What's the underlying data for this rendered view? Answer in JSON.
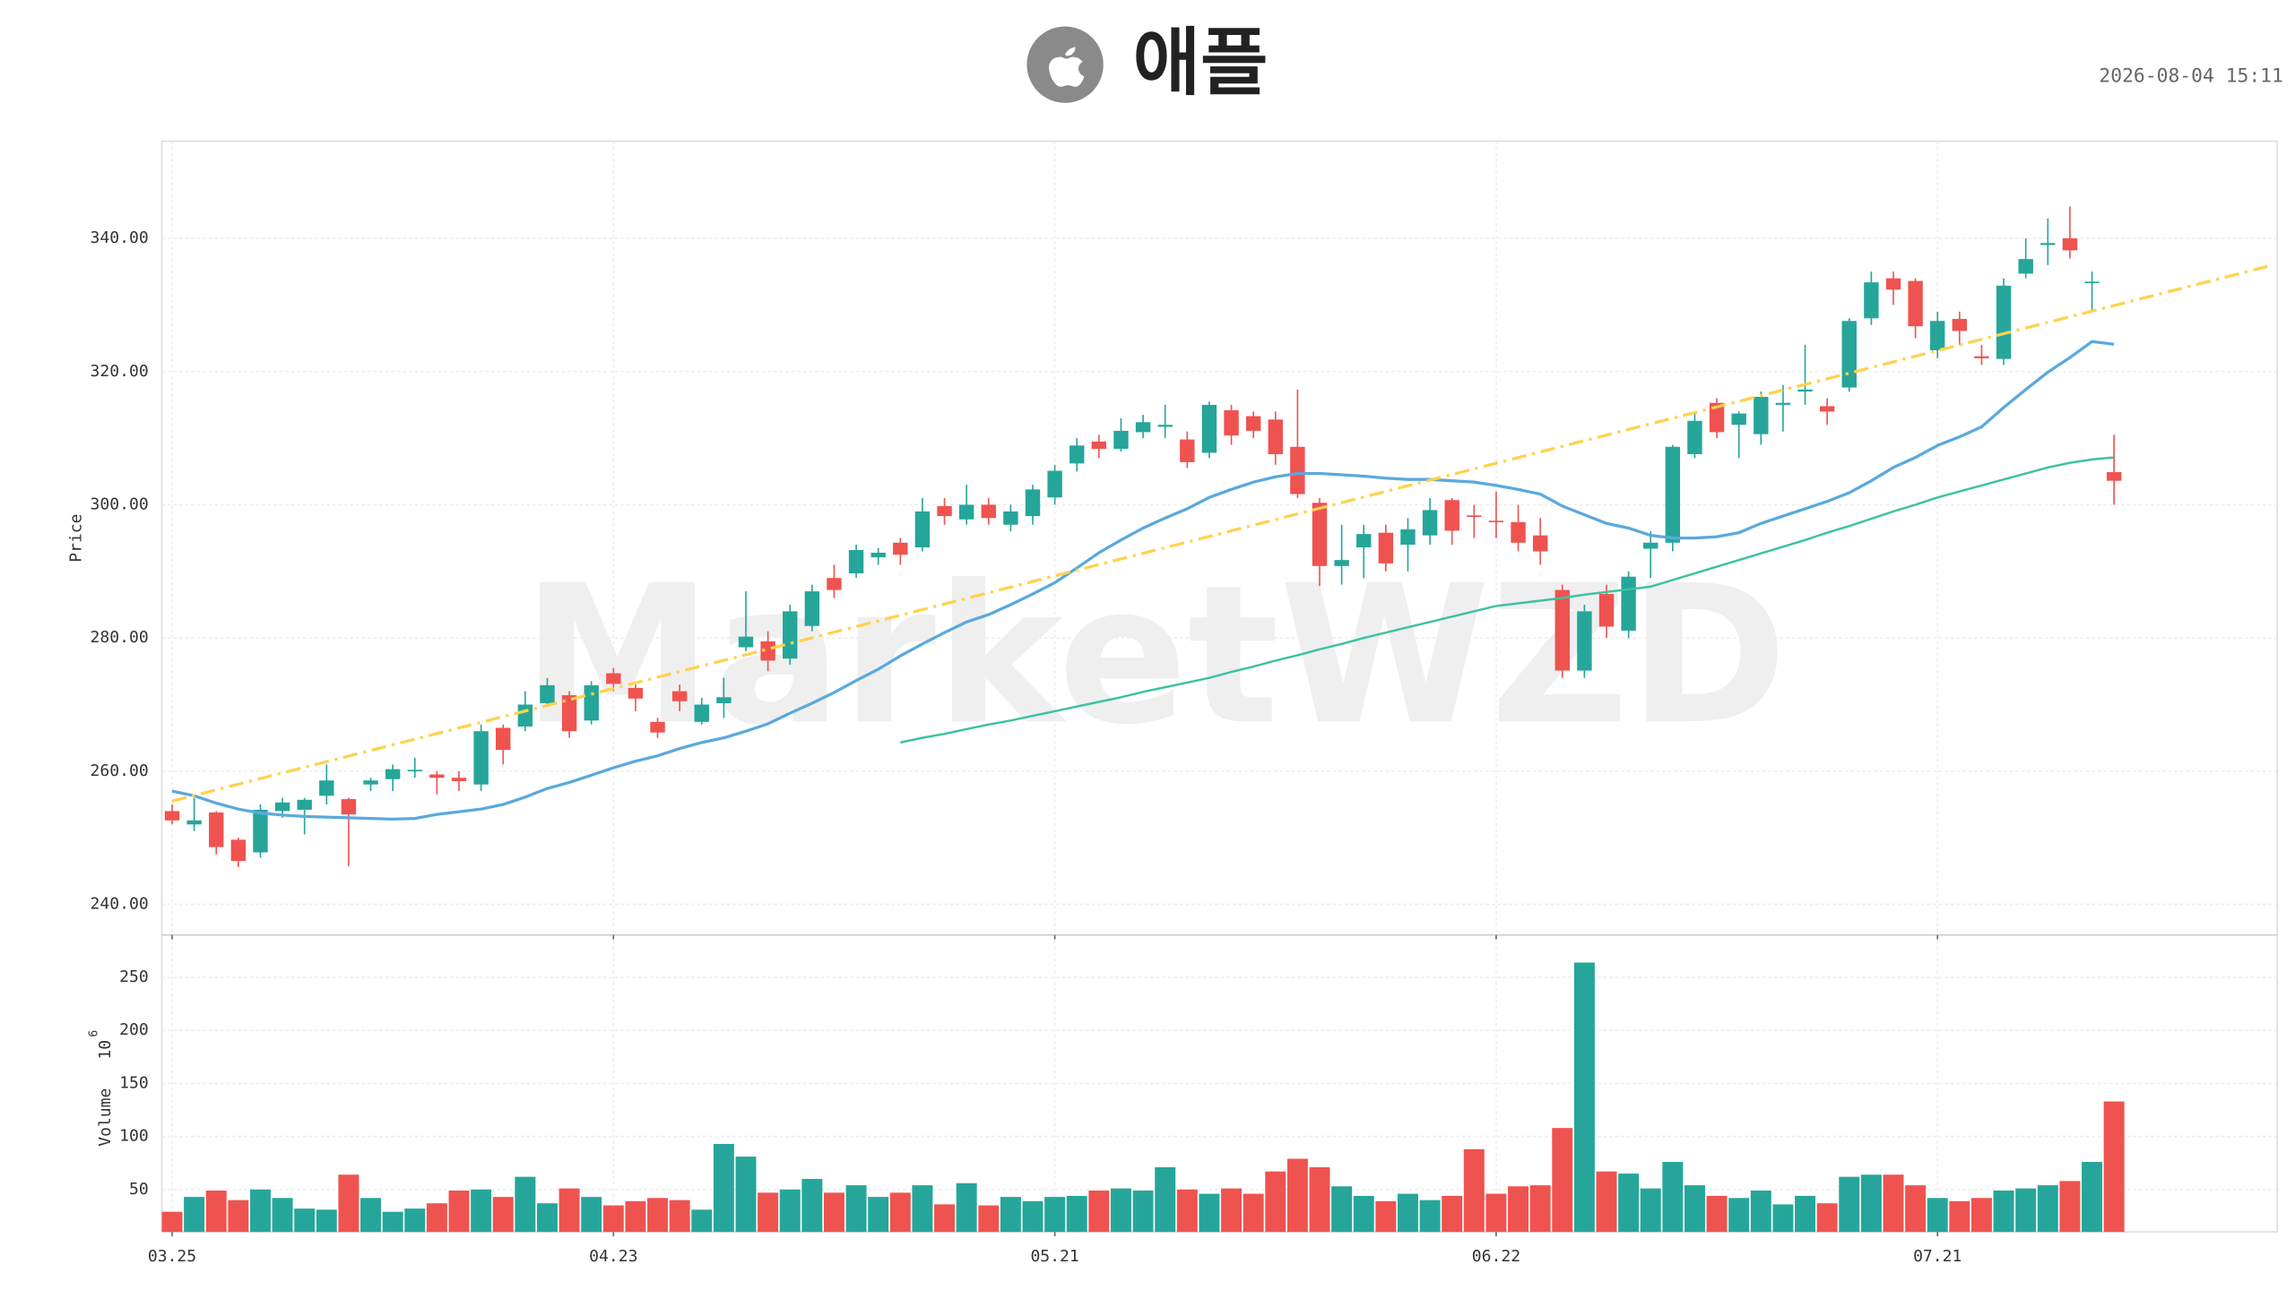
{
  "chart_data": {
    "type": "candlestick",
    "title": "애플",
    "timestamp": "2026-08-04 15:11",
    "watermark": "MarketWZD",
    "ylabel": "Price",
    "up_color": "#26a69a",
    "down_color": "#ef5350",
    "grid": true,
    "ylim": [
      235.4,
      354.6
    ],
    "yticks": [
      {
        "value": 240,
        "label": "240.00"
      },
      {
        "value": 260,
        "label": "260.00"
      },
      {
        "value": 280,
        "label": "280.00"
      },
      {
        "value": 300,
        "label": "300.00"
      },
      {
        "value": 320,
        "label": "320.00"
      },
      {
        "value": 340,
        "label": "340.00"
      }
    ],
    "categories": [
      "03.25",
      null,
      null,
      null,
      null,
      null,
      null,
      null,
      null,
      null,
      null,
      null,
      null,
      null,
      null,
      null,
      null,
      null,
      null,
      null,
      "04.23",
      null,
      null,
      null,
      null,
      null,
      null,
      null,
      null,
      null,
      null,
      null,
      null,
      null,
      null,
      null,
      null,
      null,
      null,
      null,
      "05.21",
      null,
      null,
      null,
      null,
      null,
      null,
      null,
      null,
      null,
      null,
      null,
      null,
      null,
      null,
      null,
      null,
      null,
      null,
      null,
      "06.22",
      null,
      null,
      null,
      null,
      null,
      null,
      null,
      null,
      null,
      null,
      null,
      null,
      null,
      null,
      null,
      null,
      null,
      null,
      null,
      "07.21",
      null,
      null,
      null,
      null,
      null,
      null,
      null,
      null
    ],
    "open": [
      254,
      252,
      253.8,
      249.7,
      247.8,
      254,
      254.2,
      256.3,
      255.8,
      258,
      258.8,
      260,
      259.5,
      259,
      258,
      266.5,
      266.7,
      270.2,
      271.4,
      267.6,
      274.7,
      272.5,
      267.4,
      272,
      267.4,
      270.2,
      278.6,
      279.5,
      276.9,
      281.8,
      289,
      289.7,
      292.1,
      294.3,
      293.6,
      299.8,
      297.8,
      300,
      297,
      298.3,
      301.1,
      306.2,
      309.5,
      308.4,
      310.9,
      311.7,
      309.8,
      307.8,
      314.2,
      313.3,
      312.8,
      308.7,
      300.3,
      290.8,
      293.6,
      295.8,
      294,
      295.4,
      300.7,
      298.4,
      297.6,
      297.4,
      295.4,
      287.2,
      275.1,
      286.6,
      281.1,
      293.4,
      294.3,
      307.6,
      315.3,
      312,
      310.6,
      315,
      317,
      314.8,
      317.6,
      328,
      334,
      333.6,
      323.2,
      327.9,
      322.3,
      321.9,
      334.7,
      339,
      340,
      333.3,
      304.9
    ],
    "high": [
      255,
      256,
      254,
      250,
      255,
      256,
      256,
      261,
      256,
      259,
      261,
      262,
      260,
      260,
      267,
      267,
      272,
      274,
      272,
      273.5,
      275.5,
      273,
      268,
      273,
      271,
      274,
      287,
      281,
      285,
      288,
      291,
      294,
      293.5,
      295,
      301,
      301,
      303,
      301,
      300,
      303,
      306,
      310,
      310.5,
      313,
      313.5,
      315,
      311,
      315.5,
      315,
      314,
      314,
      317.3,
      301,
      297,
      297,
      297,
      298,
      301,
      301,
      300,
      302,
      300,
      298,
      288,
      285,
      288,
      290,
      296,
      309,
      314,
      316,
      314,
      317,
      318,
      324,
      316,
      328,
      335,
      335,
      334,
      329,
      329,
      324,
      334,
      340,
      343,
      344.8,
      335,
      310.5
    ],
    "low": [
      252,
      251,
      247.5,
      245.6,
      247,
      253,
      250.5,
      255,
      245.7,
      257,
      257,
      259,
      256.5,
      257,
      257,
      261,
      266,
      270,
      265,
      267,
      272,
      269,
      265,
      269,
      267,
      268,
      278,
      275,
      276,
      281,
      286,
      289,
      291,
      291,
      293,
      297,
      297,
      297,
      296,
      297,
      300,
      305,
      307,
      308,
      310,
      310,
      305.5,
      307,
      309,
      310,
      306,
      301,
      287.8,
      288,
      289,
      290,
      290,
      294,
      294,
      295,
      295,
      293,
      291,
      274,
      274,
      280,
      280,
      289,
      293,
      307,
      310,
      307,
      309,
      311,
      315,
      312,
      317,
      327,
      330,
      325,
      322,
      324,
      321,
      321,
      334,
      336,
      337,
      329,
      300
    ],
    "close": [
      252.6,
      252.6,
      248.6,
      246.5,
      254.2,
      255.3,
      255.7,
      258.6,
      253.5,
      258.6,
      260.3,
      260.2,
      259,
      258.5,
      266,
      263.2,
      270,
      272.9,
      266,
      272.9,
      273.1,
      270.9,
      265.8,
      270.5,
      270,
      271.1,
      280.2,
      276.6,
      284,
      287,
      287.2,
      293.2,
      292.8,
      292.5,
      299,
      298.3,
      300,
      298,
      299,
      302.3,
      305.1,
      308.9,
      308.4,
      311.1,
      312.4,
      312,
      306.4,
      315,
      310.4,
      311.1,
      307.6,
      301.6,
      290.8,
      291.7,
      295.6,
      291.2,
      296.3,
      299.2,
      296.1,
      298.2,
      297.4,
      294.3,
      293,
      275.1,
      284,
      281.7,
      289.2,
      294.3,
      308.7,
      312.6,
      310.9,
      313.7,
      316.2,
      315.3,
      317.3,
      314,
      327.6,
      333.4,
      332.3,
      326.8,
      327.6,
      326.1,
      322,
      332.9,
      336.9,
      339.3,
      338.2,
      333.5,
      303.6
    ],
    "overlays": [
      {
        "color": "#5aa9dd",
        "values": [
          257,
          256.3,
          255.2,
          254.3,
          253.7,
          253.4,
          253.2,
          253.1,
          253,
          252.9,
          252.8,
          252.9,
          253.5,
          253.9,
          254.3,
          255,
          256.1,
          257.4,
          258.3,
          259.4,
          260.5,
          261.5,
          262.3,
          263.4,
          264.3,
          265,
          266,
          267.1,
          268.7,
          270.2,
          271.8,
          273.6,
          275.3,
          277.3,
          279.1,
          280.8,
          282.4,
          283.5,
          285,
          286.6,
          288.3,
          290.5,
          292.8,
          294.7,
          296.5,
          298,
          299.4,
          301.1,
          302.3,
          303.4,
          304.2,
          304.7,
          304.7,
          304.5,
          304.3,
          304,
          303.8,
          303.8,
          303.6,
          303.4,
          302.9,
          302.3,
          301.6,
          299.8,
          298.5,
          297.2,
          296.5,
          295.4,
          295,
          295,
          295.2,
          295.8,
          297.2,
          298.3,
          299.4,
          300.5,
          301.8,
          303.6,
          305.6,
          307.1,
          308.9,
          310.2,
          311.7,
          314.6,
          317.3,
          319.9,
          322.1,
          324.5,
          324.1
        ]
      },
      {
        "color": "#3cc2a0",
        "values": [
          null,
          null,
          null,
          null,
          null,
          null,
          null,
          null,
          null,
          null,
          null,
          null,
          null,
          null,
          null,
          null,
          null,
          null,
          null,
          null,
          null,
          null,
          null,
          null,
          null,
          null,
          null,
          null,
          null,
          null,
          null,
          null,
          null,
          264.3,
          265,
          265.6,
          266.3,
          267,
          267.6,
          268.3,
          269,
          269.7,
          270.4,
          271.1,
          271.9,
          272.6,
          273.3,
          274,
          274.9,
          275.7,
          276.6,
          277.4,
          278.3,
          279.1,
          280,
          280.8,
          281.6,
          282.4,
          283.2,
          284,
          284.8,
          285.2,
          285.6,
          286,
          286.5,
          286.9,
          287.3,
          287.7,
          288.7,
          289.7,
          290.7,
          291.7,
          292.7,
          293.7,
          294.7,
          295.8,
          296.8,
          297.9,
          299,
          300,
          301.1,
          302,
          302.9,
          303.8,
          304.7,
          305.6,
          306.3,
          306.8,
          307.1
        ]
      }
    ],
    "trendline": {
      "color": "#ffd24d",
      "x": [
        0,
        95.2
      ],
      "values": [
        255.5,
        336
      ]
    },
    "volume": {
      "ylabel": "Volume",
      "scale_base": "10",
      "scale_exp": "6",
      "ylim": [
        10,
        290
      ],
      "yticks": [
        50,
        100,
        150,
        200,
        250
      ],
      "values": [
        29,
        43,
        49,
        40,
        50,
        42,
        32,
        31,
        64,
        42,
        29,
        32,
        37,
        49,
        50,
        43,
        62,
        37,
        51,
        43,
        35,
        39,
        42,
        40,
        31,
        93,
        81,
        47,
        50,
        60,
        47,
        54,
        43,
        47,
        54,
        36,
        56,
        35,
        43,
        39,
        43,
        44,
        49,
        51,
        49,
        71,
        50,
        46,
        51,
        46,
        67,
        79,
        71,
        53,
        44,
        39,
        46,
        40,
        44,
        88,
        46,
        53,
        54,
        108,
        264,
        67,
        65,
        51,
        76,
        54,
        44,
        42,
        49,
        36,
        44,
        37,
        62,
        64,
        64,
        54,
        42,
        39,
        42,
        49,
        51,
        54,
        58,
        76,
        133
      ]
    }
  }
}
